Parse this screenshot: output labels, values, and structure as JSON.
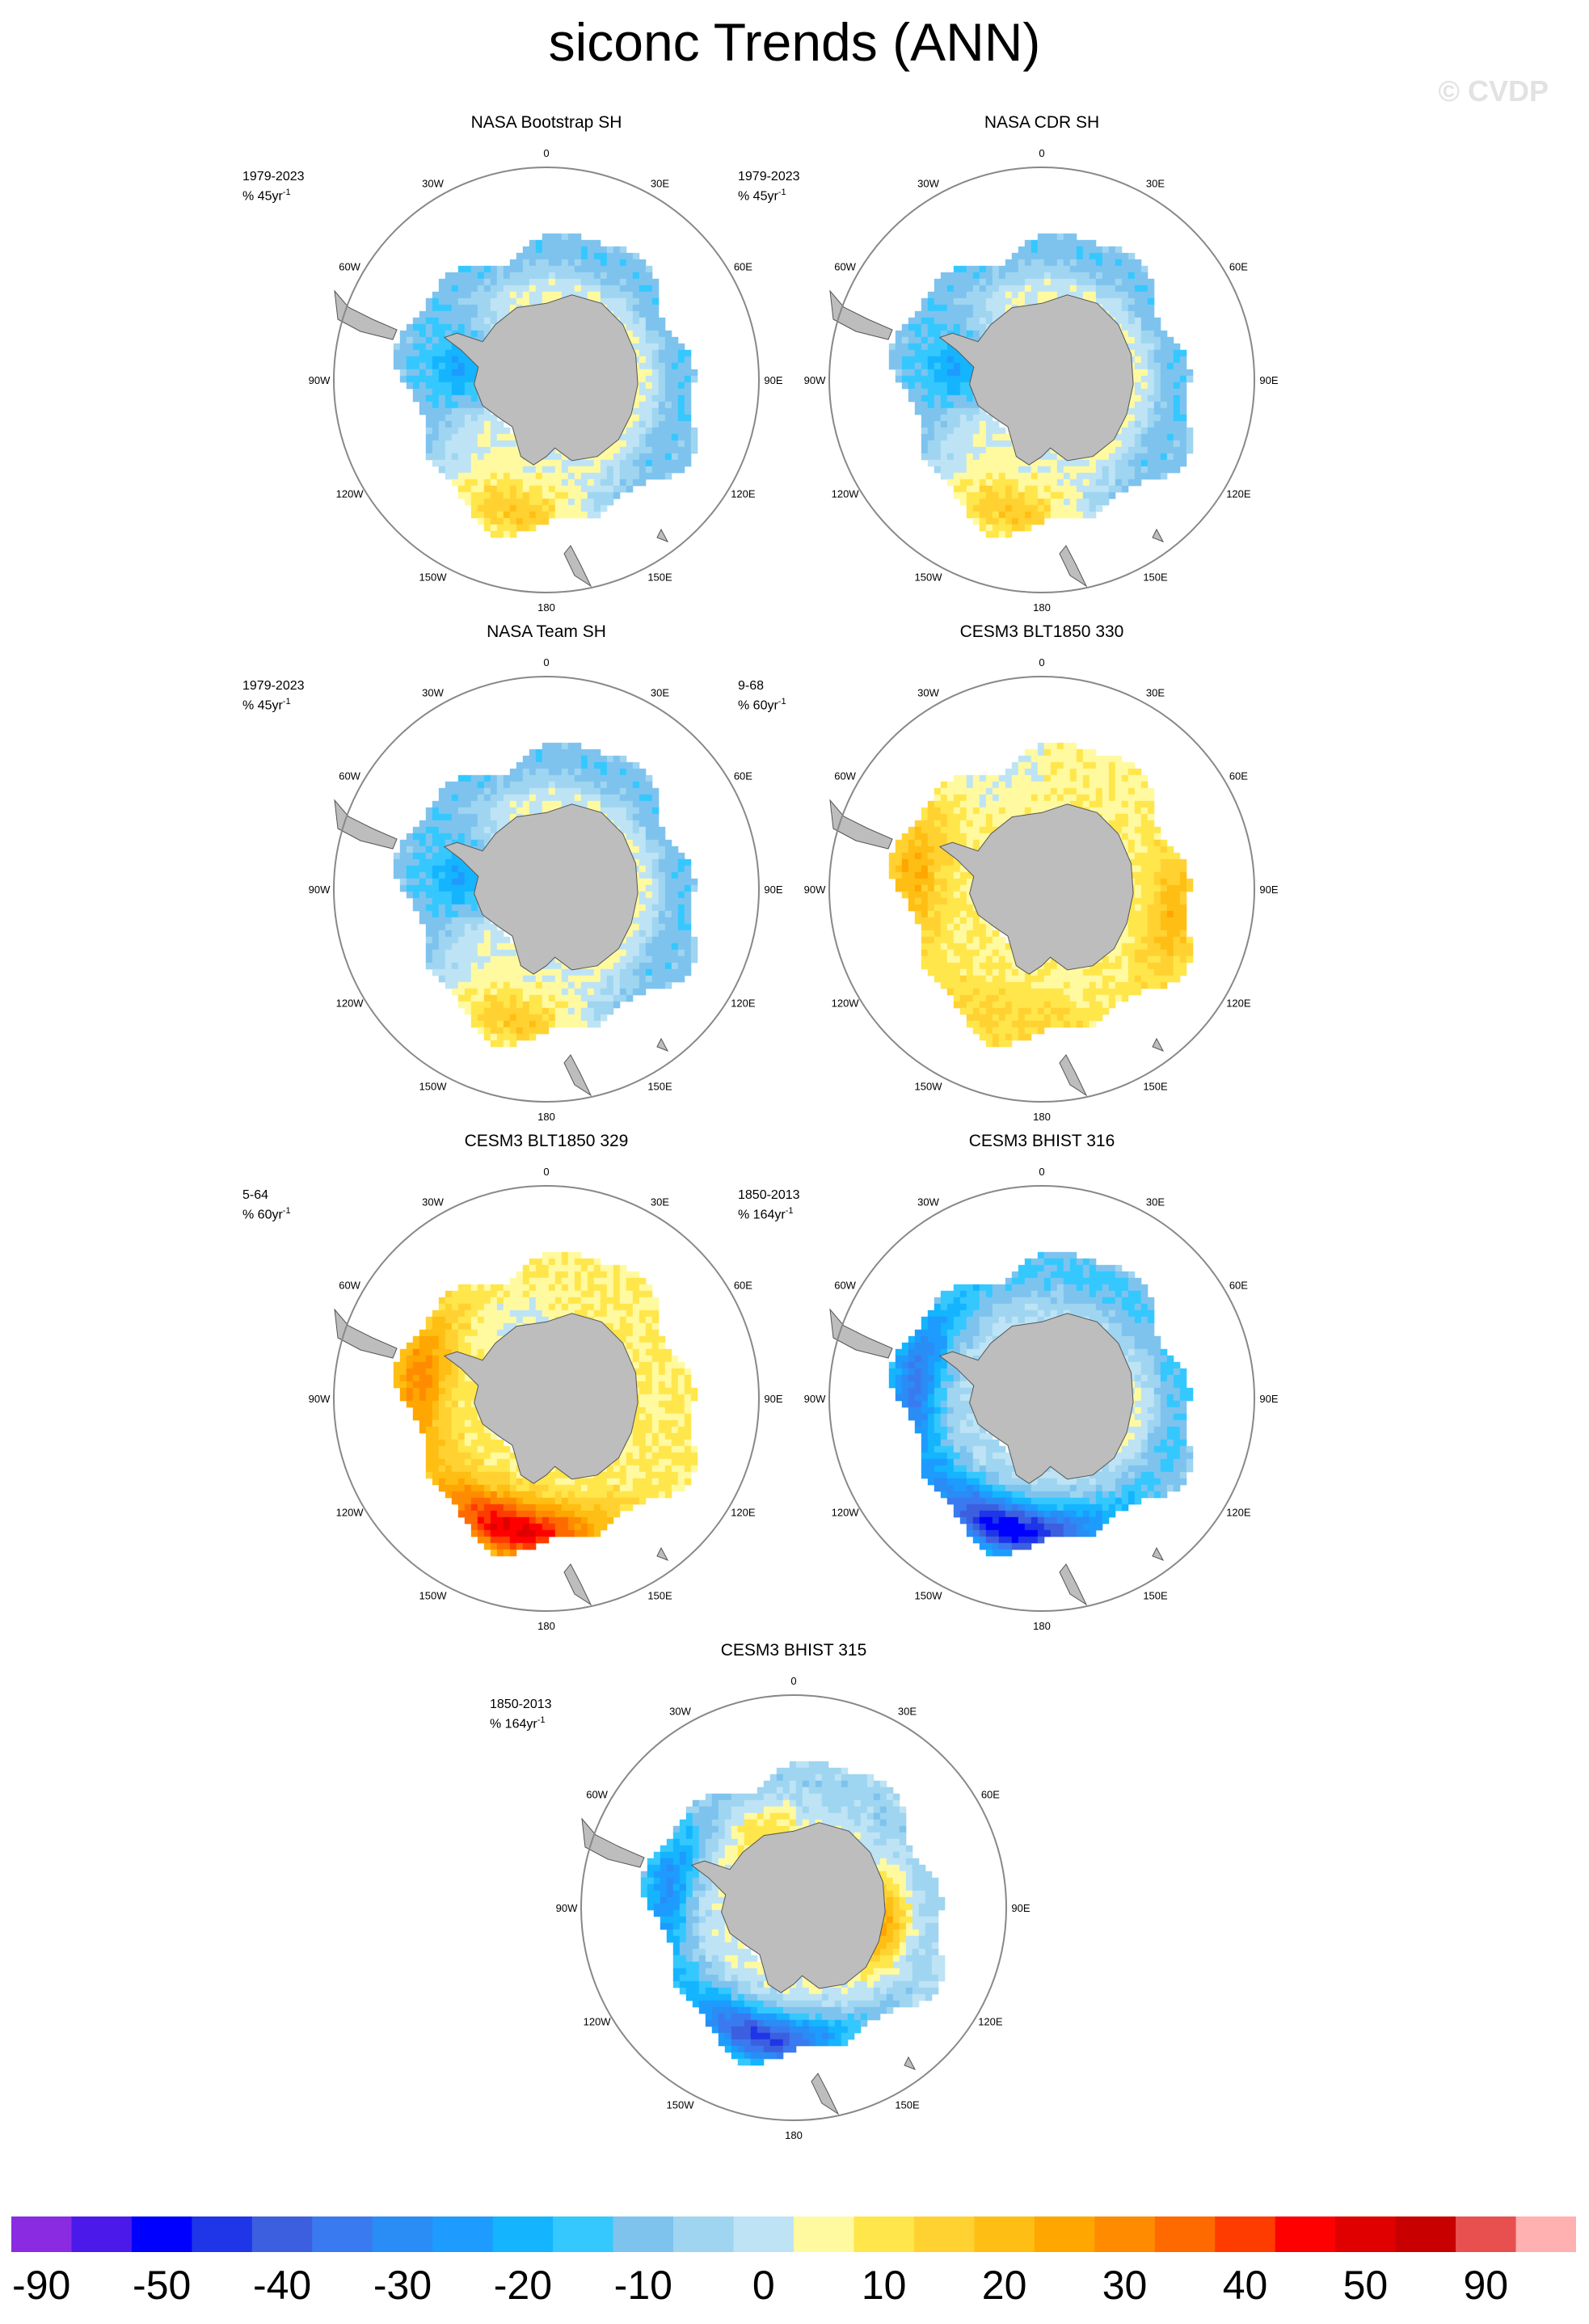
{
  "title": "siconc Trends (ANN)",
  "watermark": "© CVDP",
  "longitude_labels": [
    "0",
    "30E",
    "60E",
    "90E",
    "120E",
    "150E",
    "180",
    "150W",
    "120W",
    "90W",
    "60W",
    "30W"
  ],
  "colors": {
    "land": "#bdbdbd",
    "ring": "#888888"
  },
  "chart_data": {
    "type": "polar_map",
    "variable": "siconc",
    "season": "ANN",
    "panels": [
      {
        "title": "NASA Bootstrap SH",
        "period": "1979-2023",
        "units": "% 45yr",
        "units_sup": "-1",
        "pattern": "obs-a"
      },
      {
        "title": "NASA CDR SH",
        "period": "1979-2023",
        "units": "% 45yr",
        "units_sup": "-1",
        "pattern": "obs-b"
      },
      {
        "title": "NASA Team SH",
        "period": "1979-2023",
        "units": "% 45yr",
        "units_sup": "-1",
        "pattern": "obs-c"
      },
      {
        "title": "CESM3 BLT1850 330",
        "period": "9-68",
        "units": "% 60yr",
        "units_sup": "-1",
        "pattern": "blt330"
      },
      {
        "title": "CESM3 BLT1850 329",
        "period": "5-64",
        "units": "% 60yr",
        "units_sup": "-1",
        "pattern": "blt329"
      },
      {
        "title": "CESM3 BHIST 316",
        "period": "1850-2013",
        "units": "% 164yr",
        "units_sup": "-1",
        "pattern": "bhist316"
      },
      {
        "title": "CESM3 BHIST 315",
        "period": "1850-2013",
        "units": "% 164yr",
        "units_sup": "-1",
        "pattern": "bhist315"
      }
    ],
    "colorbar": {
      "colors": [
        "#8a2be2",
        "#4b1aeb",
        "#0000ff",
        "#1e35e8",
        "#3c5fe0",
        "#3a7af0",
        "#2a8cf5",
        "#1e9bff",
        "#14b4ff",
        "#34c8ff",
        "#7ec3ee",
        "#9fd5f0",
        "#bde3f5",
        "#fffaa0",
        "#ffe64b",
        "#ffd232",
        "#ffbe14",
        "#ffa600",
        "#ff8c00",
        "#ff6a00",
        "#ff3c00",
        "#ff0000",
        "#e00000",
        "#c80000",
        "#e85050",
        "#ffb0b0"
      ],
      "labels": [
        "-90",
        "-50",
        "-40",
        "-30",
        "-20",
        "-10",
        "0",
        "10",
        "20",
        "30",
        "40",
        "50",
        "90"
      ],
      "label_at_boundaries": [
        1,
        3,
        5,
        7,
        9,
        11,
        13,
        15,
        17,
        19,
        21,
        23,
        25
      ]
    }
  }
}
